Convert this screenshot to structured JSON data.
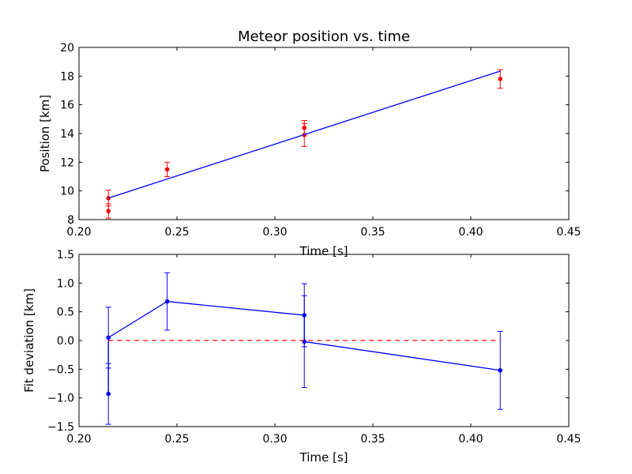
{
  "chart_data": [
    {
      "type": "scatter",
      "title": "Meteor position vs. time",
      "xlabel": "Time [s]",
      "ylabel": "Position [km]",
      "xlim": [
        0.2,
        0.45
      ],
      "ylim": [
        8,
        20
      ],
      "xticks": [
        "0.20",
        "0.25",
        "0.30",
        "0.35",
        "0.40",
        "0.45"
      ],
      "yticks": [
        "8",
        "10",
        "12",
        "14",
        "16",
        "18",
        "20"
      ],
      "grid": false,
      "series": [
        {
          "kind": "points_with_errorbars",
          "color": "#ff0000",
          "x": [
            0.215,
            0.215,
            0.245,
            0.315,
            0.315,
            0.415
          ],
          "y": [
            8.6,
            9.5,
            11.5,
            14.4,
            13.9,
            17.8
          ],
          "yerr": [
            0.5,
            0.55,
            0.5,
            0.5,
            0.8,
            0.65
          ]
        },
        {
          "kind": "line",
          "color": "#0000ff",
          "x": [
            0.215,
            0.415
          ],
          "y": [
            9.5,
            18.35
          ]
        }
      ]
    },
    {
      "type": "line",
      "xlabel": "Time [s]",
      "ylabel": "Fit deviation [km]",
      "xlim": [
        0.2,
        0.45
      ],
      "ylim": [
        -1.5,
        1.5
      ],
      "xticks": [
        "0.20",
        "0.25",
        "0.30",
        "0.35",
        "0.40",
        "0.45"
      ],
      "yticks": [
        "-1.5",
        "-1.0",
        "-0.5",
        "0.0",
        "0.5",
        "1.0",
        "1.5"
      ],
      "grid": false,
      "series": [
        {
          "kind": "line_with_errorbars",
          "color": "#0000ff",
          "x": [
            0.215,
            0.215,
            0.245,
            0.315,
            0.315,
            0.415
          ],
          "y": [
            -0.93,
            0.05,
            0.68,
            0.44,
            -0.02,
            -0.52
          ],
          "yerr": [
            0.53,
            0.53,
            0.5,
            0.55,
            0.8,
            0.68
          ]
        },
        {
          "kind": "hline",
          "color": "#ff0000",
          "dashed": true,
          "x": [
            0.215,
            0.415
          ],
          "y": [
            0,
            0
          ]
        }
      ]
    }
  ]
}
